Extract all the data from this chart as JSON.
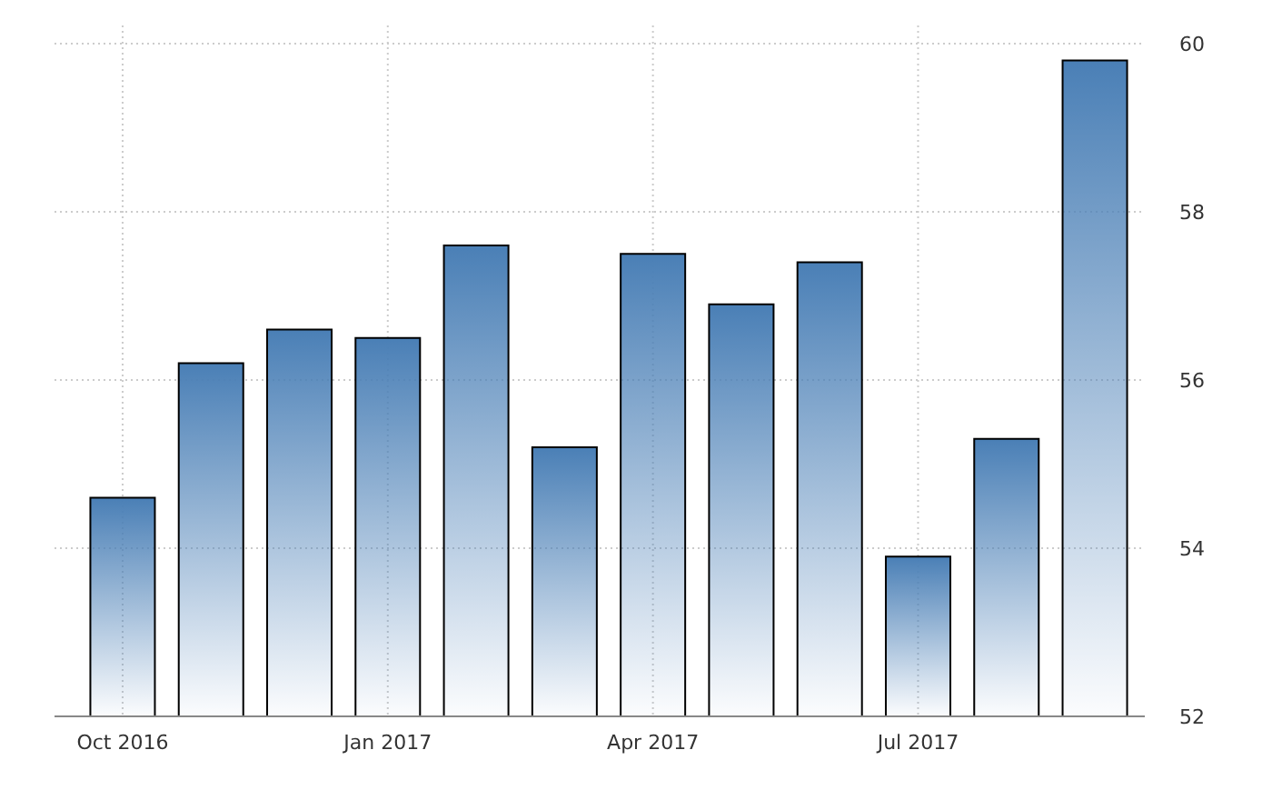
{
  "chart_data": {
    "type": "bar",
    "categories": [
      "Oct 2016",
      null,
      null,
      "Jan 2017",
      null,
      null,
      "Apr 2017",
      null,
      null,
      "Jul 2017",
      null,
      null
    ],
    "values": [
      54.6,
      56.2,
      56.6,
      56.5,
      57.6,
      55.2,
      57.5,
      56.9,
      57.4,
      53.9,
      55.3,
      59.8
    ],
    "color": "#4a7fb6",
    "ylim": [
      52,
      60
    ],
    "yticks": [
      52,
      54,
      56,
      58,
      60
    ],
    "grid": true
  }
}
